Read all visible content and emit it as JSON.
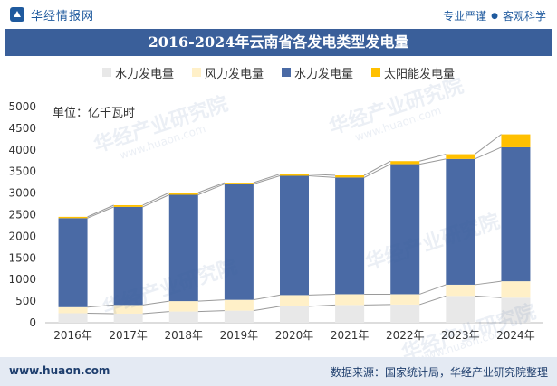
{
  "header": {
    "brand_name": "华经情报网",
    "tagline_left": "专业严谨",
    "tagline_right": "客观科学",
    "logo_icon": "brand-logo-icon"
  },
  "title": "2016-2024年云南省各发电类型发电量",
  "footer": {
    "url": "www.huaon.com",
    "source": "数据来源：国家统计局，华经产业研究院整理"
  },
  "watermarks": [
    "华经产业研究院",
    "www.huaon.com"
  ],
  "chart_data": {
    "type": "bar",
    "stacked": true,
    "unit_label": "单位：亿千瓦时",
    "categories": [
      "2016年",
      "2017年",
      "2018年",
      "2019年",
      "2020年",
      "2021年",
      "2022年",
      "2023年",
      "2024年"
    ],
    "series": [
      {
        "name": "水力发电量",
        "color": "#e8e8e8",
        "values": [
          220,
          210,
          260,
          280,
          380,
          410,
          420,
          620,
          580
        ]
      },
      {
        "name": "风力发电量",
        "color": "#fff0c8",
        "values": [
          140,
          200,
          240,
          250,
          260,
          250,
          240,
          260,
          380
        ]
      },
      {
        "name": "水力发电量",
        "color": "#4a6aa5",
        "values": [
          2060,
          2270,
          2460,
          2680,
          2760,
          2700,
          3010,
          2910,
          3100
        ]
      },
      {
        "name": "太阳能发电量",
        "color": "#ffc000",
        "values": [
          30,
          40,
          50,
          30,
          40,
          50,
          70,
          110,
          300
        ]
      }
    ],
    "ylim": [
      0,
      5000
    ],
    "yticks": [
      0,
      500,
      1000,
      1500,
      2000,
      2500,
      3000,
      3500,
      4000,
      4500,
      5000
    ],
    "grid": false,
    "legend": "top"
  }
}
